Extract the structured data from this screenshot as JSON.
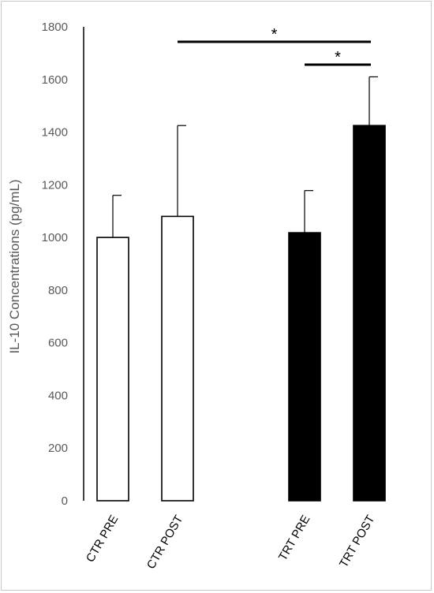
{
  "chart_data": {
    "type": "bar",
    "title": "",
    "xlabel": "",
    "ylabel": "IL-10 Concentrations (pg/mL)",
    "ylim": [
      0,
      1800
    ],
    "yticks": [
      0,
      200,
      400,
      600,
      800,
      1000,
      1200,
      1400,
      1600,
      1800
    ],
    "grid": false,
    "legend": "none",
    "categories": [
      "CTR PRE",
      "CTR POST",
      "TRT PRE",
      "TRT POST"
    ],
    "values": [
      1000,
      1080,
      1018,
      1425
    ],
    "error": [
      160,
      345,
      160,
      185
    ],
    "bar_fill": [
      "#ffffff",
      "#ffffff",
      "#000000",
      "#000000"
    ],
    "significance": [
      {
        "from": "CTR POST",
        "to": "TRT POST",
        "label": "*"
      },
      {
        "from": "TRT PRE",
        "to": "TRT POST",
        "label": "*"
      }
    ]
  }
}
